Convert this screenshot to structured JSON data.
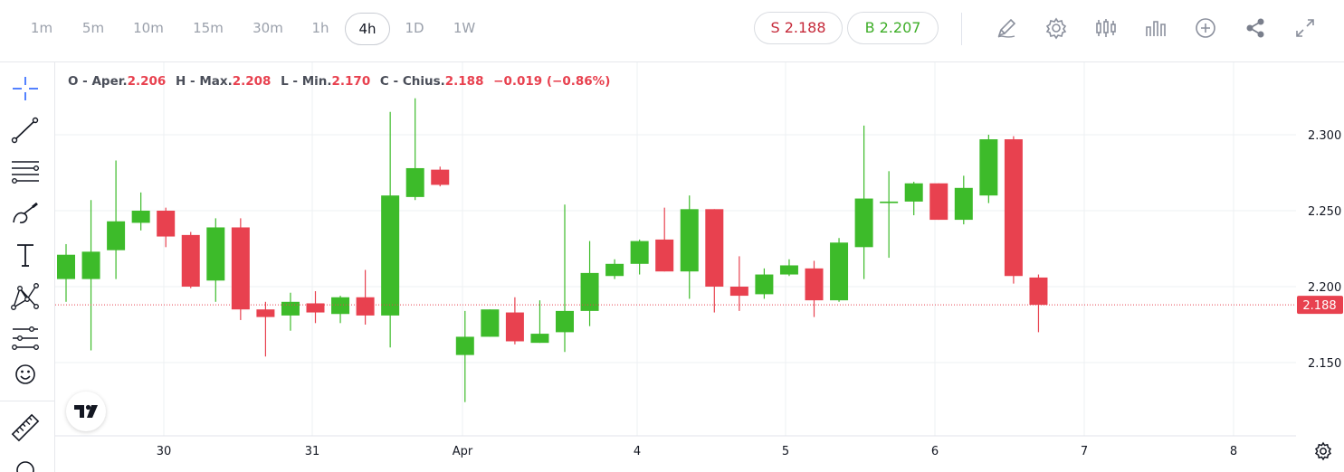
{
  "timeframes": [
    {
      "label": "1m"
    },
    {
      "label": "5m"
    },
    {
      "label": "10m"
    },
    {
      "label": "15m"
    },
    {
      "label": "30m"
    },
    {
      "label": "1h"
    },
    {
      "label": "4h",
      "active": true
    },
    {
      "label": "1D"
    },
    {
      "label": "1W"
    }
  ],
  "quote": {
    "sell_label": "S 2.188",
    "buy_label": "B 2.207"
  },
  "toolbar_icons": [
    "pencil-icon",
    "settings-icon",
    "candles-icon",
    "bars-icon",
    "add-indicator-icon",
    "share-icon",
    "fullscreen-icon"
  ],
  "left_tools": [
    "crosshair-icon",
    "trendline-icon",
    "fib-lines-icon",
    "brush-icon",
    "text-icon",
    "pattern-icon",
    "forecast-icon",
    "emoji-icon",
    "ruler-icon"
  ],
  "ohlc_legend": {
    "open_label": "O - Aper.",
    "open": "2.206",
    "high_label": "H - Max.",
    "high": "2.208",
    "low_label": "L - Min.",
    "low": "2.170",
    "close_label": "C - Chius.",
    "close": "2.188",
    "change": "−0.019 (−0.86%)"
  },
  "colors": {
    "up": "#3dbb2a",
    "down": "#e8414f",
    "grid": "#eef0f3",
    "axis_text": "#131722",
    "last_price_bg": "#e8414f"
  },
  "chart_data": {
    "type": "candlestick",
    "y_axis": {
      "ticks": [
        2.15,
        2.2,
        2.25,
        2.3
      ],
      "tick_labels": [
        "2.150",
        "2.200",
        "2.250",
        "2.300"
      ],
      "range": [
        2.104,
        2.335
      ]
    },
    "x_axis": {
      "tick_labels": [
        "30",
        "31",
        "Apr",
        "4",
        "5",
        "6",
        "7",
        "8"
      ]
    },
    "last_price": "2.188",
    "candles": [
      {
        "o": 2.205,
        "h": 2.228,
        "l": 2.19,
        "c": 2.221
      },
      {
        "o": 2.205,
        "h": 2.257,
        "l": 2.158,
        "c": 2.223
      },
      {
        "o": 2.224,
        "h": 2.283,
        "l": 2.205,
        "c": 2.243
      },
      {
        "o": 2.242,
        "h": 2.262,
        "l": 2.237,
        "c": 2.25
      },
      {
        "o": 2.25,
        "h": 2.252,
        "l": 2.226,
        "c": 2.233
      },
      {
        "o": 2.234,
        "h": 2.236,
        "l": 2.199,
        "c": 2.2
      },
      {
        "o": 2.204,
        "h": 2.245,
        "l": 2.19,
        "c": 2.239
      },
      {
        "o": 2.239,
        "h": 2.245,
        "l": 2.178,
        "c": 2.185
      },
      {
        "o": 2.185,
        "h": 2.19,
        "l": 2.154,
        "c": 2.18
      },
      {
        "o": 2.181,
        "h": 2.196,
        "l": 2.171,
        "c": 2.19
      },
      {
        "o": 2.189,
        "h": 2.197,
        "l": 2.176,
        "c": 2.183
      },
      {
        "o": 2.182,
        "h": 2.194,
        "l": 2.176,
        "c": 2.193
      },
      {
        "o": 2.193,
        "h": 2.211,
        "l": 2.175,
        "c": 2.181
      },
      {
        "o": 2.181,
        "h": 2.315,
        "l": 2.16,
        "c": 2.26
      },
      {
        "o": 2.259,
        "h": 2.324,
        "l": 2.257,
        "c": 2.278
      },
      {
        "o": 2.277,
        "h": 2.279,
        "l": 2.266,
        "c": 2.267
      },
      {
        "o": 2.155,
        "h": 2.184,
        "l": 2.124,
        "c": 2.167
      },
      {
        "o": 2.167,
        "h": 2.185,
        "l": 2.167,
        "c": 2.185
      },
      {
        "o": 2.183,
        "h": 2.193,
        "l": 2.162,
        "c": 2.164
      },
      {
        "o": 2.163,
        "h": 2.191,
        "l": 2.163,
        "c": 2.169
      },
      {
        "o": 2.17,
        "h": 2.254,
        "l": 2.157,
        "c": 2.184
      },
      {
        "o": 2.184,
        "h": 2.23,
        "l": 2.174,
        "c": 2.209
      },
      {
        "o": 2.207,
        "h": 2.218,
        "l": 2.205,
        "c": 2.215
      },
      {
        "o": 2.215,
        "h": 2.231,
        "l": 2.208,
        "c": 2.23
      },
      {
        "o": 2.231,
        "h": 2.252,
        "l": 2.21,
        "c": 2.21
      },
      {
        "o": 2.21,
        "h": 2.26,
        "l": 2.192,
        "c": 2.251
      },
      {
        "o": 2.251,
        "h": 2.251,
        "l": 2.183,
        "c": 2.2
      },
      {
        "o": 2.2,
        "h": 2.22,
        "l": 2.184,
        "c": 2.194
      },
      {
        "o": 2.195,
        "h": 2.212,
        "l": 2.192,
        "c": 2.208
      },
      {
        "o": 2.208,
        "h": 2.218,
        "l": 2.207,
        "c": 2.214
      },
      {
        "o": 2.212,
        "h": 2.217,
        "l": 2.18,
        "c": 2.191
      },
      {
        "o": 2.191,
        "h": 2.232,
        "l": 2.19,
        "c": 2.229
      },
      {
        "o": 2.226,
        "h": 2.306,
        "l": 2.205,
        "c": 2.258
      },
      {
        "o": 2.255,
        "h": 2.276,
        "l": 2.219,
        "c": 2.256
      },
      {
        "o": 2.256,
        "h": 2.269,
        "l": 2.247,
        "c": 2.268
      },
      {
        "o": 2.268,
        "h": 2.268,
        "l": 2.244,
        "c": 2.244
      },
      {
        "o": 2.244,
        "h": 2.273,
        "l": 2.241,
        "c": 2.265
      },
      {
        "o": 2.26,
        "h": 2.3,
        "l": 2.255,
        "c": 2.297
      },
      {
        "o": 2.297,
        "h": 2.299,
        "l": 2.202,
        "c": 2.207
      },
      {
        "o": 2.206,
        "h": 2.208,
        "l": 2.17,
        "c": 2.188
      }
    ]
  }
}
